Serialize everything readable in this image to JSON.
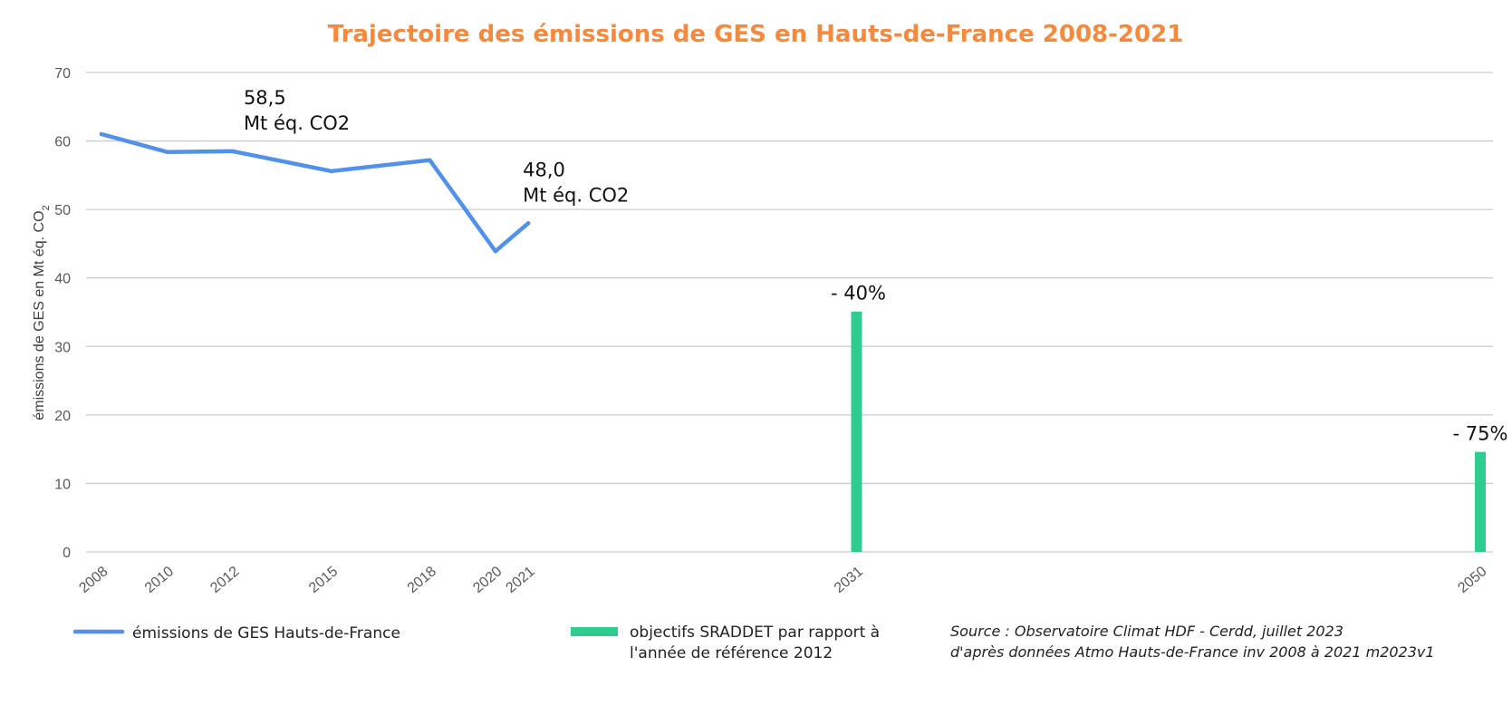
{
  "colors": {
    "title": "#F58A3E",
    "line": "#5191EA",
    "bar": "#2ECC8F",
    "grid": "#CCCCCC",
    "tick": "#595959"
  },
  "chart_data": {
    "type": "line",
    "title": "Trajectoire des émissions de GES en Hauts-de-France 2008-2021",
    "ylabel": "émissions de GES en Mt éq. CO",
    "ylabel_subscript": "2",
    "xlabel": "",
    "x_ticks": [
      "2008",
      "2010",
      "2012",
      "2015",
      "2018",
      "2020",
      "2021",
      "2031",
      "2050"
    ],
    "ylim": [
      0,
      70
    ],
    "y_ticks": [
      0,
      10,
      20,
      30,
      40,
      50,
      60,
      70
    ],
    "grid": true,
    "legend_position": "bottom",
    "series": [
      {
        "name": "émissions de GES Hauts-de-France",
        "type": "line",
        "x": [
          2008,
          2010,
          2012,
          2015,
          2018,
          2020,
          2021
        ],
        "values": [
          61.0,
          58.4,
          58.5,
          55.6,
          57.2,
          43.9,
          48.0
        ]
      },
      {
        "name": "objectifs SRADDET par rapport à l'année de référence 2012",
        "name_lines": [
          "objectifs SRADDET par rapport à",
          "l'année de référence 2012"
        ],
        "type": "bar",
        "x": [
          2031,
          2050
        ],
        "values": [
          35.1,
          14.6
        ]
      }
    ],
    "annotations": [
      {
        "x": 2012,
        "y": 58.5,
        "lines": [
          "58,5",
          "Mt éq. CO2"
        ]
      },
      {
        "x": 2021,
        "y": 48.0,
        "lines": [
          "48,0",
          "Mt éq. CO2"
        ]
      },
      {
        "x": 2031,
        "y": 35.1,
        "lines": [
          "- 40%"
        ]
      },
      {
        "x": 2050,
        "y": 14.6,
        "lines": [
          "- 75%"
        ]
      }
    ],
    "source": [
      "Source : Observatoire Climat HDF - Cerdd, juillet 2023",
      "d'après données Atmo Hauts-de-France inv 2008 à 2021 m2023v1"
    ]
  }
}
